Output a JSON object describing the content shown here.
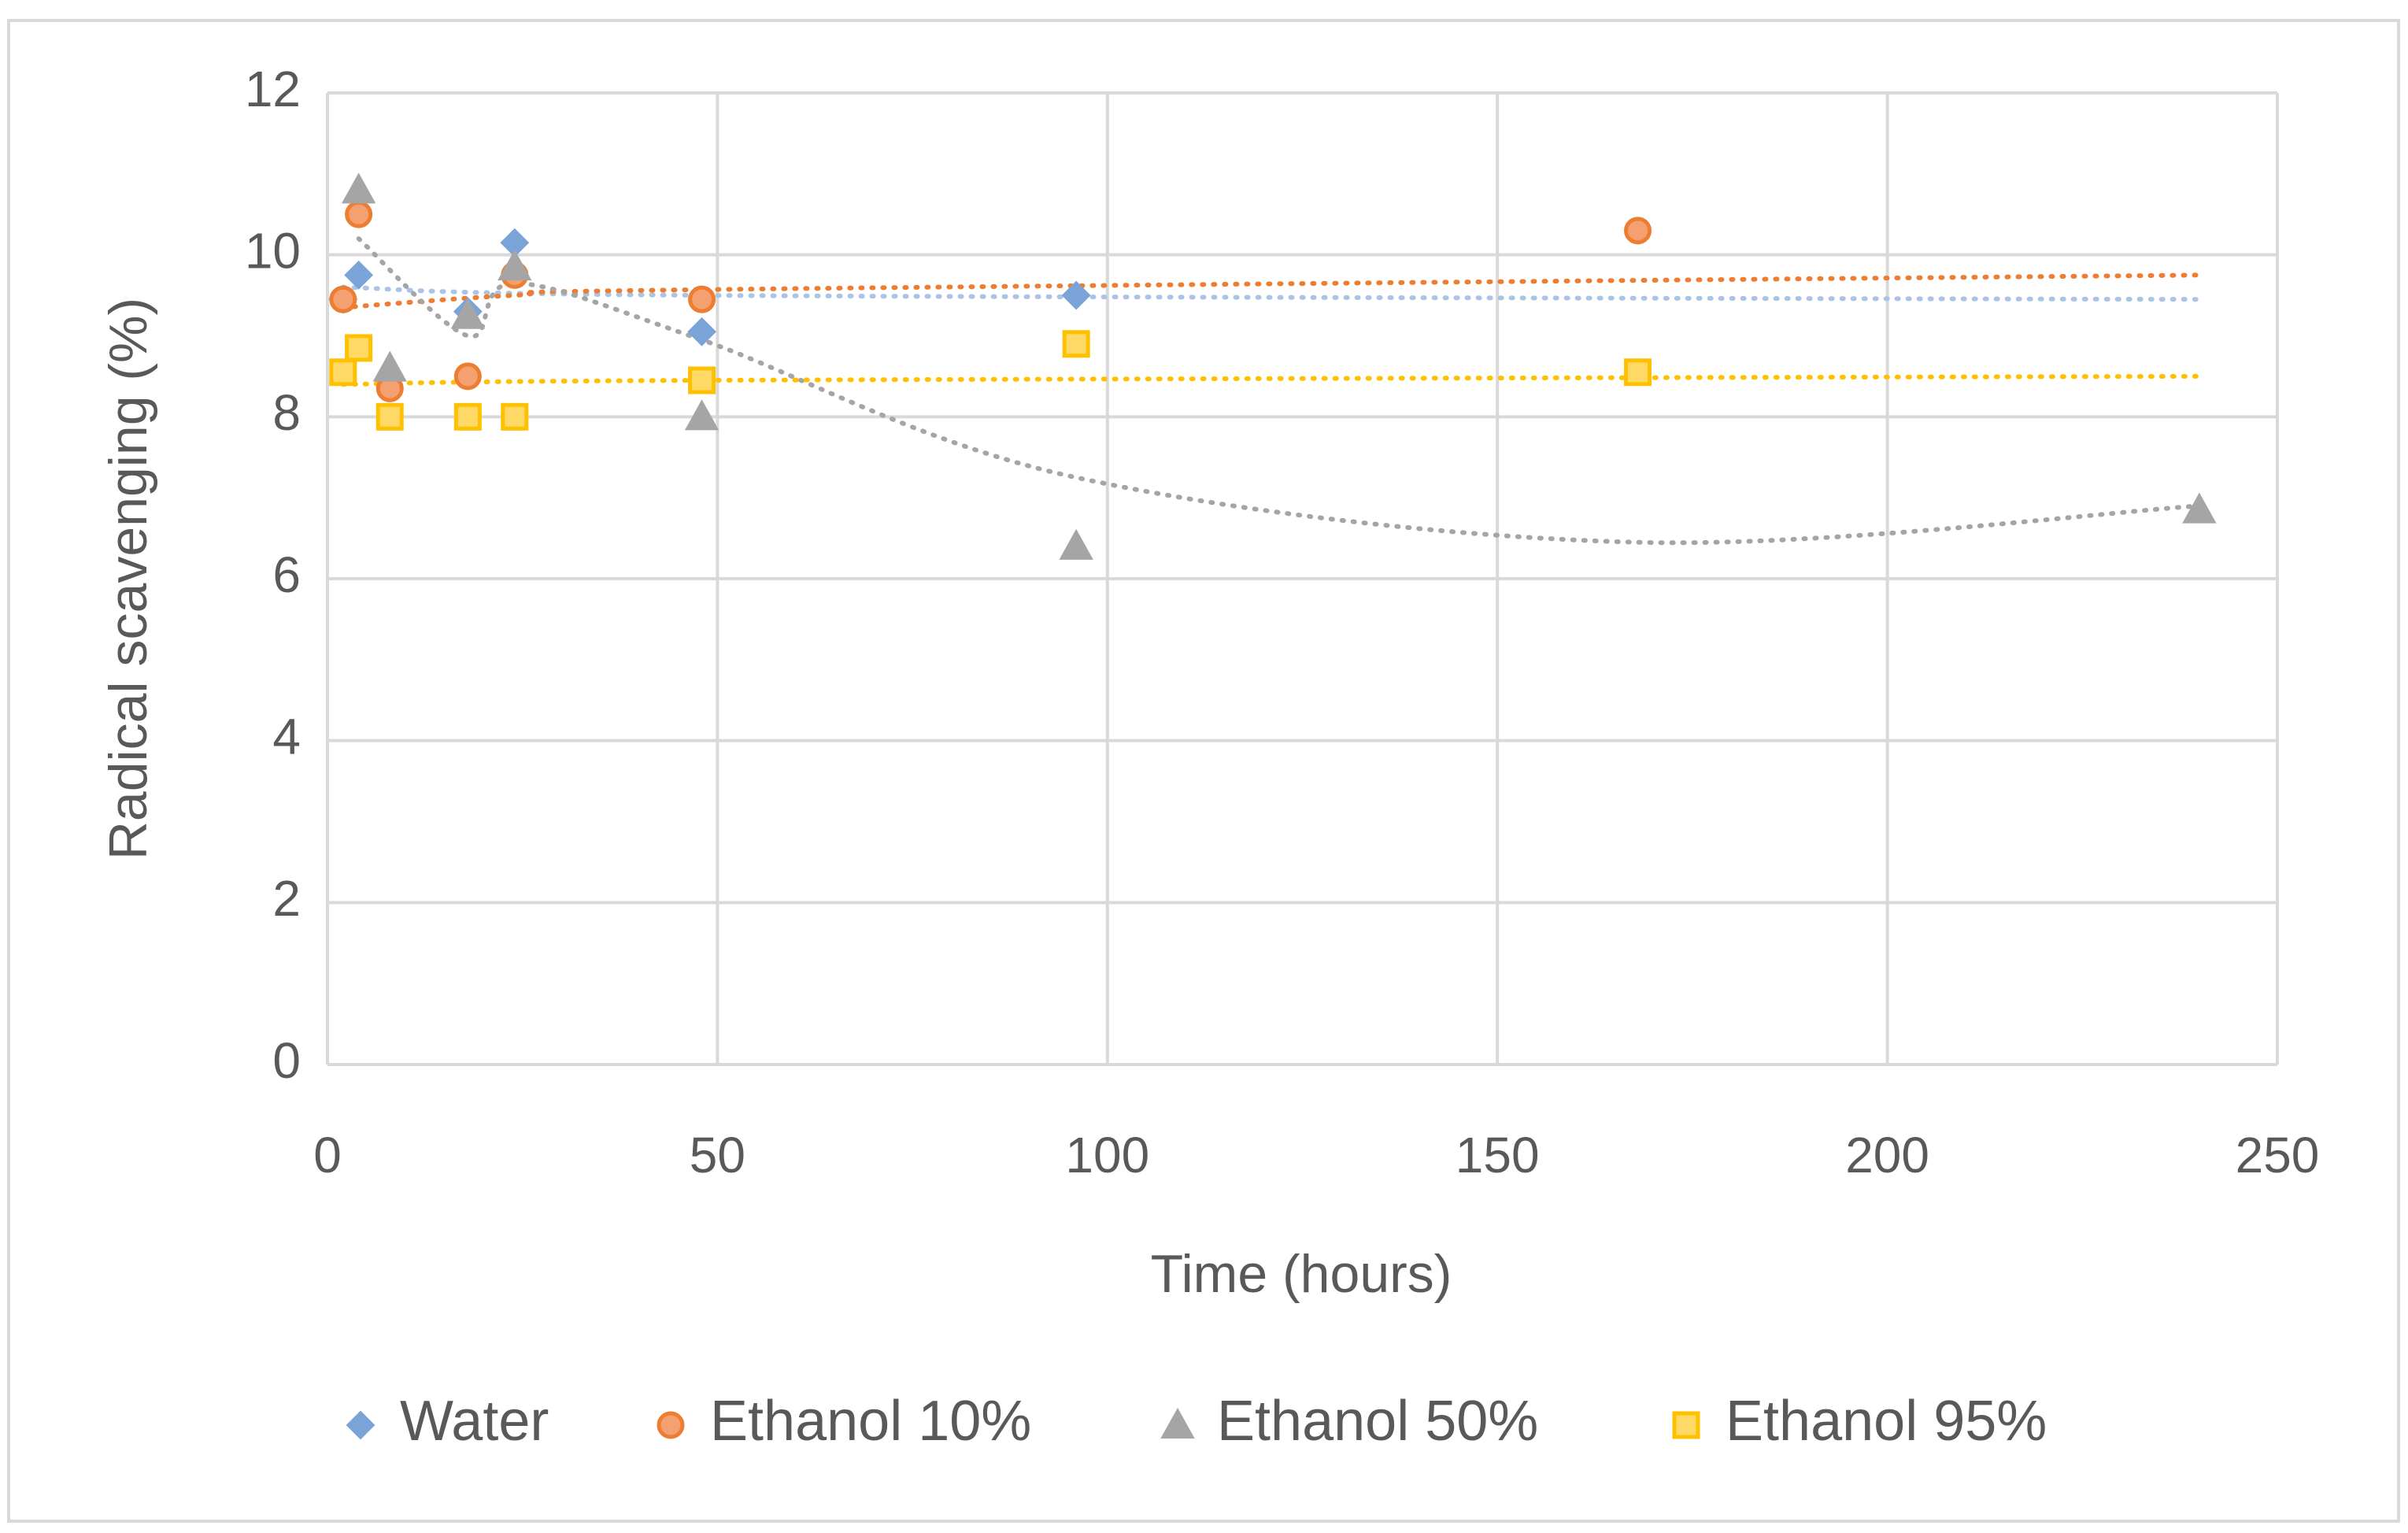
{
  "chart_data": {
    "type": "scatter",
    "title": "",
    "xlabel": "Time (hours)",
    "ylabel": "Radical scavenging (%)",
    "xlim": [
      0,
      250
    ],
    "ylim": [
      0,
      12
    ],
    "xticks": [
      0,
      50,
      100,
      150,
      200,
      250
    ],
    "yticks": [
      0,
      2,
      4,
      6,
      8,
      10,
      12
    ],
    "grid": "both",
    "legend_position": "bottom",
    "series": [
      {
        "name": "Water",
        "marker": "diamond",
        "color": "#7aa3d8",
        "trend_color": "#a9c4e6",
        "x": [
          2,
          4,
          18,
          24,
          48,
          96
        ],
        "y": [
          9.45,
          9.75,
          9.3,
          10.15,
          9.05,
          9.5
        ],
        "trend": [
          [
            2,
            9.6
          ],
          [
            48,
            9.5
          ],
          [
            240,
            9.45
          ]
        ]
      },
      {
        "name": "Ethanol 10%",
        "marker": "circle",
        "color": "#f4a070",
        "edge": "#ed7d31",
        "trend_color": "#ed7d31",
        "x": [
          2,
          4,
          8,
          18,
          24,
          48,
          168
        ],
        "y": [
          9.45,
          10.5,
          8.35,
          8.5,
          9.75,
          9.45,
          10.3
        ],
        "trend": [
          [
            2,
            9.35
          ],
          [
            24,
            9.5
          ],
          [
            48,
            9.57
          ],
          [
            240,
            9.75
          ]
        ]
      },
      {
        "name": "Ethanol 50%",
        "marker": "triangle",
        "color": "#a5a5a5",
        "trend_color": "#a5a5a5",
        "x": [
          4,
          8,
          18,
          24,
          48,
          96,
          240
        ],
        "y": [
          10.8,
          8.6,
          9.25,
          9.85,
          8.0,
          6.4,
          6.85
        ],
        "trend": [
          [
            4,
            10.2
          ],
          [
            18,
            9.0
          ],
          [
            24,
            9.65
          ],
          [
            48,
            8.95
          ],
          [
            96,
            7.25
          ],
          [
            168,
            6.45
          ],
          [
            240,
            6.9
          ]
        ]
      },
      {
        "name": "Ethanol 95%",
        "marker": "square",
        "color": "#ffd966",
        "edge": "#ffc000",
        "trend_color": "#ffc000",
        "x": [
          2,
          4,
          8,
          18,
          24,
          48,
          96,
          168
        ],
        "y": [
          8.55,
          8.85,
          8.0,
          8.0,
          8.0,
          8.45,
          8.9,
          8.55
        ],
        "trend": [
          [
            2,
            8.4
          ],
          [
            48,
            8.45
          ],
          [
            240,
            8.5
          ]
        ]
      }
    ]
  }
}
